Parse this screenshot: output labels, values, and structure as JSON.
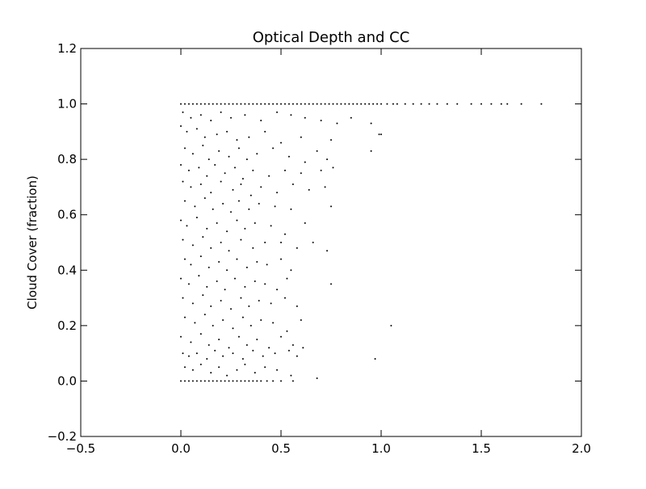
{
  "chart_data": {
    "type": "scatter",
    "title": "Optical Depth and CC",
    "xlabel": "",
    "ylabel": "Cloud Cover (fraction)",
    "xlim": [
      -0.5,
      2.0
    ],
    "ylim": [
      -0.2,
      1.2
    ],
    "xticks": [
      -0.5,
      0.0,
      0.5,
      1.0,
      1.5,
      2.0
    ],
    "xtick_labels": [
      "−0.5",
      "0.0",
      "0.5",
      "1.0",
      "1.5",
      "2.0"
    ],
    "yticks": [
      -0.2,
      0.0,
      0.2,
      0.4,
      0.6,
      0.8,
      1.0,
      1.2
    ],
    "ytick_labels": [
      "−0.2",
      "0.0",
      "0.2",
      "0.4",
      "0.6",
      "0.8",
      "1.0",
      "1.2"
    ],
    "grid": false,
    "marker": "point",
    "marker_color": "#000000",
    "series": [
      {
        "points": [
          [
            0.0,
            1.0
          ],
          [
            0.02,
            1.0
          ],
          [
            0.04,
            1.0
          ],
          [
            0.06,
            1.0
          ],
          [
            0.08,
            1.0
          ],
          [
            0.1,
            1.0
          ],
          [
            0.12,
            1.0
          ],
          [
            0.14,
            1.0
          ],
          [
            0.16,
            1.0
          ],
          [
            0.18,
            1.0
          ],
          [
            0.2,
            1.0
          ],
          [
            0.22,
            1.0
          ],
          [
            0.24,
            1.0
          ],
          [
            0.26,
            1.0
          ],
          [
            0.28,
            1.0
          ],
          [
            0.3,
            1.0
          ],
          [
            0.32,
            1.0
          ],
          [
            0.34,
            1.0
          ],
          [
            0.36,
            1.0
          ],
          [
            0.38,
            1.0
          ],
          [
            0.4,
            1.0
          ],
          [
            0.42,
            1.0
          ],
          [
            0.44,
            1.0
          ],
          [
            0.46,
            1.0
          ],
          [
            0.48,
            1.0
          ],
          [
            0.5,
            1.0
          ],
          [
            0.52,
            1.0
          ],
          [
            0.54,
            1.0
          ],
          [
            0.56,
            1.0
          ],
          [
            0.58,
            1.0
          ],
          [
            0.6,
            1.0
          ],
          [
            0.62,
            1.0
          ],
          [
            0.64,
            1.0
          ],
          [
            0.66,
            1.0
          ],
          [
            0.68,
            1.0
          ],
          [
            0.7,
            1.0
          ],
          [
            0.72,
            1.0
          ],
          [
            0.74,
            1.0
          ],
          [
            0.76,
            1.0
          ],
          [
            0.78,
            1.0
          ],
          [
            0.8,
            1.0
          ],
          [
            0.82,
            1.0
          ],
          [
            0.84,
            1.0
          ],
          [
            0.86,
            1.0
          ],
          [
            0.88,
            1.0
          ],
          [
            0.9,
            1.0
          ],
          [
            0.92,
            1.0
          ],
          [
            0.94,
            1.0
          ],
          [
            0.96,
            1.0
          ],
          [
            0.98,
            1.0
          ],
          [
            1.0,
            1.0
          ],
          [
            1.03,
            1.0
          ],
          [
            1.06,
            1.0
          ],
          [
            1.08,
            1.0
          ],
          [
            1.12,
            1.0
          ],
          [
            1.16,
            1.0
          ],
          [
            1.2,
            1.0
          ],
          [
            1.24,
            1.0
          ],
          [
            1.28,
            1.0
          ],
          [
            1.33,
            1.0
          ],
          [
            1.38,
            1.0
          ],
          [
            1.45,
            1.0
          ],
          [
            1.5,
            1.0
          ],
          [
            1.55,
            1.0
          ],
          [
            1.6,
            1.0
          ],
          [
            1.63,
            1.0
          ],
          [
            1.7,
            1.0
          ],
          [
            1.8,
            1.0
          ],
          [
            0.0,
            0.0
          ],
          [
            0.02,
            0.0
          ],
          [
            0.04,
            0.0
          ],
          [
            0.06,
            0.0
          ],
          [
            0.08,
            0.0
          ],
          [
            0.1,
            0.0
          ],
          [
            0.12,
            0.0
          ],
          [
            0.14,
            0.0
          ],
          [
            0.16,
            0.0
          ],
          [
            0.18,
            0.0
          ],
          [
            0.2,
            0.0
          ],
          [
            0.22,
            0.0
          ],
          [
            0.24,
            0.0
          ],
          [
            0.26,
            0.0
          ],
          [
            0.28,
            0.0
          ],
          [
            0.3,
            0.0
          ],
          [
            0.32,
            0.0
          ],
          [
            0.34,
            0.0
          ],
          [
            0.36,
            0.0
          ],
          [
            0.38,
            0.0
          ],
          [
            0.4,
            0.0
          ],
          [
            0.43,
            0.0
          ],
          [
            0.46,
            0.0
          ],
          [
            0.5,
            0.0
          ],
          [
            0.56,
            0.0
          ],
          [
            0.01,
            0.97
          ],
          [
            0.05,
            0.95
          ],
          [
            0.1,
            0.96
          ],
          [
            0.15,
            0.94
          ],
          [
            0.2,
            0.97
          ],
          [
            0.25,
            0.95
          ],
          [
            0.32,
            0.96
          ],
          [
            0.4,
            0.94
          ],
          [
            0.48,
            0.97
          ],
          [
            0.55,
            0.96
          ],
          [
            0.62,
            0.95
          ],
          [
            0.7,
            0.94
          ],
          [
            0.78,
            0.93
          ],
          [
            0.85,
            0.95
          ],
          [
            0.95,
            0.93
          ],
          [
            1.0,
            0.89
          ],
          [
            0.0,
            0.92
          ],
          [
            0.03,
            0.9
          ],
          [
            0.08,
            0.91
          ],
          [
            0.12,
            0.88
          ],
          [
            0.18,
            0.89
          ],
          [
            0.23,
            0.9
          ],
          [
            0.28,
            0.87
          ],
          [
            0.34,
            0.88
          ],
          [
            0.42,
            0.9
          ],
          [
            0.5,
            0.86
          ],
          [
            0.6,
            0.88
          ],
          [
            0.75,
            0.87
          ],
          [
            0.99,
            0.89
          ],
          [
            0.02,
            0.84
          ],
          [
            0.06,
            0.82
          ],
          [
            0.11,
            0.85
          ],
          [
            0.14,
            0.8
          ],
          [
            0.19,
            0.83
          ],
          [
            0.24,
            0.81
          ],
          [
            0.29,
            0.84
          ],
          [
            0.33,
            0.8
          ],
          [
            0.38,
            0.82
          ],
          [
            0.46,
            0.84
          ],
          [
            0.54,
            0.81
          ],
          [
            0.62,
            0.79
          ],
          [
            0.68,
            0.83
          ],
          [
            0.73,
            0.8
          ],
          [
            0.95,
            0.83
          ],
          [
            0.0,
            0.78
          ],
          [
            0.04,
            0.76
          ],
          [
            0.09,
            0.77
          ],
          [
            0.13,
            0.74
          ],
          [
            0.17,
            0.78
          ],
          [
            0.22,
            0.75
          ],
          [
            0.27,
            0.77
          ],
          [
            0.31,
            0.73
          ],
          [
            0.36,
            0.76
          ],
          [
            0.44,
            0.74
          ],
          [
            0.52,
            0.76
          ],
          [
            0.6,
            0.75
          ],
          [
            0.7,
            0.76
          ],
          [
            0.76,
            0.77
          ],
          [
            0.01,
            0.72
          ],
          [
            0.05,
            0.7
          ],
          [
            0.1,
            0.71
          ],
          [
            0.15,
            0.68
          ],
          [
            0.2,
            0.72
          ],
          [
            0.26,
            0.69
          ],
          [
            0.3,
            0.71
          ],
          [
            0.35,
            0.67
          ],
          [
            0.4,
            0.7
          ],
          [
            0.48,
            0.68
          ],
          [
            0.56,
            0.71
          ],
          [
            0.64,
            0.69
          ],
          [
            0.72,
            0.7
          ],
          [
            0.02,
            0.65
          ],
          [
            0.07,
            0.63
          ],
          [
            0.12,
            0.66
          ],
          [
            0.16,
            0.62
          ],
          [
            0.21,
            0.64
          ],
          [
            0.25,
            0.61
          ],
          [
            0.29,
            0.65
          ],
          [
            0.34,
            0.62
          ],
          [
            0.39,
            0.64
          ],
          [
            0.47,
            0.63
          ],
          [
            0.55,
            0.62
          ],
          [
            0.75,
            0.63
          ],
          [
            0.0,
            0.58
          ],
          [
            0.03,
            0.56
          ],
          [
            0.08,
            0.59
          ],
          [
            0.13,
            0.55
          ],
          [
            0.18,
            0.57
          ],
          [
            0.23,
            0.54
          ],
          [
            0.28,
            0.58
          ],
          [
            0.32,
            0.55
          ],
          [
            0.37,
            0.57
          ],
          [
            0.45,
            0.56
          ],
          [
            0.52,
            0.53
          ],
          [
            0.62,
            0.57
          ],
          [
            0.01,
            0.51
          ],
          [
            0.06,
            0.49
          ],
          [
            0.11,
            0.52
          ],
          [
            0.15,
            0.48
          ],
          [
            0.2,
            0.5
          ],
          [
            0.24,
            0.47
          ],
          [
            0.3,
            0.51
          ],
          [
            0.36,
            0.48
          ],
          [
            0.42,
            0.5
          ],
          [
            0.5,
            0.5
          ],
          [
            0.58,
            0.48
          ],
          [
            0.66,
            0.5
          ],
          [
            0.73,
            0.47
          ],
          [
            0.02,
            0.44
          ],
          [
            0.05,
            0.42
          ],
          [
            0.1,
            0.45
          ],
          [
            0.14,
            0.41
          ],
          [
            0.19,
            0.43
          ],
          [
            0.23,
            0.4
          ],
          [
            0.28,
            0.44
          ],
          [
            0.33,
            0.41
          ],
          [
            0.38,
            0.43
          ],
          [
            0.43,
            0.42
          ],
          [
            0.5,
            0.44
          ],
          [
            0.55,
            0.4
          ],
          [
            0.0,
            0.37
          ],
          [
            0.04,
            0.35
          ],
          [
            0.09,
            0.38
          ],
          [
            0.13,
            0.34
          ],
          [
            0.18,
            0.36
          ],
          [
            0.22,
            0.33
          ],
          [
            0.27,
            0.37
          ],
          [
            0.32,
            0.34
          ],
          [
            0.37,
            0.36
          ],
          [
            0.42,
            0.35
          ],
          [
            0.48,
            0.33
          ],
          [
            0.53,
            0.37
          ],
          [
            0.75,
            0.35
          ],
          [
            0.01,
            0.3
          ],
          [
            0.06,
            0.28
          ],
          [
            0.11,
            0.31
          ],
          [
            0.15,
            0.27
          ],
          [
            0.2,
            0.29
          ],
          [
            0.25,
            0.26
          ],
          [
            0.3,
            0.3
          ],
          [
            0.34,
            0.27
          ],
          [
            0.39,
            0.29
          ],
          [
            0.45,
            0.28
          ],
          [
            0.52,
            0.3
          ],
          [
            0.58,
            0.27
          ],
          [
            0.02,
            0.23
          ],
          [
            0.07,
            0.21
          ],
          [
            0.12,
            0.24
          ],
          [
            0.16,
            0.2
          ],
          [
            0.21,
            0.22
          ],
          [
            0.26,
            0.19
          ],
          [
            0.31,
            0.23
          ],
          [
            0.35,
            0.2
          ],
          [
            0.4,
            0.22
          ],
          [
            0.46,
            0.21
          ],
          [
            0.53,
            0.18
          ],
          [
            0.6,
            0.22
          ],
          [
            1.05,
            0.2
          ],
          [
            0.0,
            0.16
          ],
          [
            0.05,
            0.14
          ],
          [
            0.1,
            0.17
          ],
          [
            0.14,
            0.13
          ],
          [
            0.19,
            0.15
          ],
          [
            0.24,
            0.12
          ],
          [
            0.29,
            0.16
          ],
          [
            0.33,
            0.13
          ],
          [
            0.38,
            0.15
          ],
          [
            0.44,
            0.12
          ],
          [
            0.5,
            0.16
          ],
          [
            0.56,
            0.13
          ],
          [
            0.61,
            0.12
          ],
          [
            0.01,
            0.1
          ],
          [
            0.04,
            0.09
          ],
          [
            0.08,
            0.1
          ],
          [
            0.13,
            0.08
          ],
          [
            0.17,
            0.11
          ],
          [
            0.21,
            0.09
          ],
          [
            0.26,
            0.1
          ],
          [
            0.31,
            0.08
          ],
          [
            0.36,
            0.11
          ],
          [
            0.41,
            0.09
          ],
          [
            0.47,
            0.1
          ],
          [
            0.54,
            0.11
          ],
          [
            0.58,
            0.09
          ],
          [
            0.97,
            0.08
          ],
          [
            0.02,
            0.05
          ],
          [
            0.06,
            0.04
          ],
          [
            0.1,
            0.06
          ],
          [
            0.15,
            0.03
          ],
          [
            0.19,
            0.05
          ],
          [
            0.23,
            0.02
          ],
          [
            0.28,
            0.04
          ],
          [
            0.32,
            0.06
          ],
          [
            0.37,
            0.03
          ],
          [
            0.42,
            0.05
          ],
          [
            0.48,
            0.04
          ],
          [
            0.55,
            0.02
          ],
          [
            0.68,
            0.01
          ]
        ]
      }
    ]
  }
}
